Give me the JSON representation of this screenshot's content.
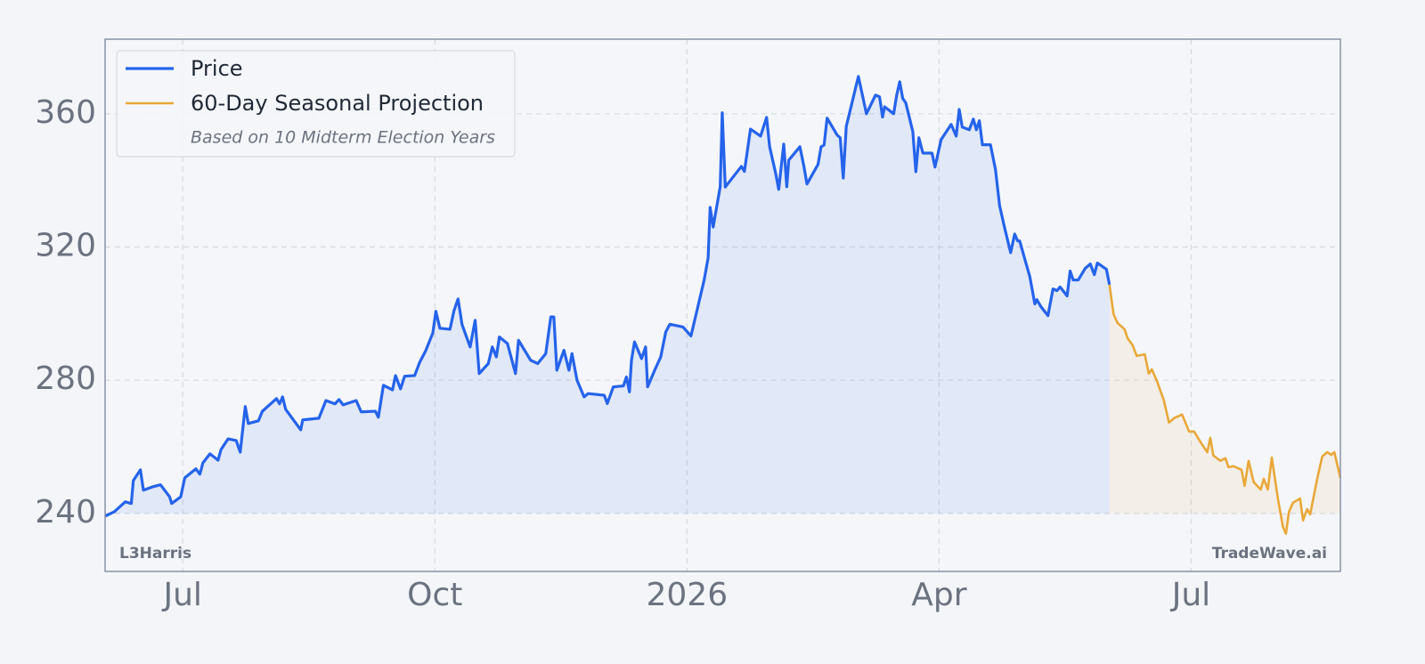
{
  "chart_data": {
    "type": "line",
    "title": "L3Harris",
    "subtitle": "Based on 10 Midterm Election Years",
    "watermark": "TradeWave.ai",
    "xlim": [
      2025.423,
      2026.648
    ],
    "xticks": [
      {
        "value": 2025.5,
        "label": "Jul"
      },
      {
        "value": 2025.75,
        "label": "Oct"
      },
      2026,
      {
        "value": 2026.25,
        "label": "Apr"
      },
      {
        "value": 2026.5,
        "label": "Jul"
      }
    ],
    "ylim": [
      222.6,
      382.4
    ],
    "yticks": [
      240,
      280,
      320,
      360
    ],
    "grid": true,
    "legend": "upper left",
    "series": [
      {
        "name": "Price",
        "color": "#2563eb",
        "x": [
          2025.423,
          2025.432,
          2025.443,
          2025.449,
          2025.451,
          2025.458,
          2025.461,
          2025.47,
          2025.478,
          2025.487,
          2025.489,
          2025.498,
          2025.502,
          2025.513,
          2025.517,
          2025.52,
          2025.527,
          2025.535,
          2025.538,
          2025.545,
          2025.553,
          2025.557,
          2025.562,
          2025.565,
          2025.575,
          2025.579,
          2025.593,
          2025.596,
          2025.599,
          2025.602,
          2025.617,
          2025.619,
          2025.635,
          2025.642,
          2025.651,
          2025.655,
          2025.659,
          2025.672,
          2025.677,
          2025.691,
          2025.694,
          2025.699,
          2025.708,
          2025.711,
          2025.716,
          2025.72,
          2025.73,
          2025.735,
          2025.741,
          2025.748,
          2025.751,
          2025.755,
          2025.765,
          2025.769,
          2025.773,
          2025.777,
          2025.785,
          2025.79,
          2025.794,
          2025.803,
          2025.807,
          2025.811,
          2025.814,
          2025.822,
          2025.83,
          2025.833,
          2025.845,
          2025.852,
          2025.86,
          2025.865,
          2025.868,
          2025.871,
          2025.878,
          2025.883,
          2025.886,
          2025.891,
          2025.898,
          2025.902,
          2025.918,
          2025.921,
          2025.927,
          2025.937,
          2025.94,
          2025.943,
          2025.945,
          2025.948,
          2025.955,
          2025.959,
          2025.961,
          2025.968,
          2025.974,
          2025.979,
          2025.983,
          2025.996,
          2026.004,
          2026.017,
          2026.021,
          2026.023,
          2026.026,
          2026.033,
          2026.035,
          2026.038,
          2026.047,
          2026.054,
          2026.057,
          2026.063,
          2026.073,
          2026.079,
          2026.082,
          2026.088,
          2026.091,
          2026.096,
          2026.099,
          2026.101,
          2026.112,
          2026.116,
          2026.119,
          2026.13,
          2026.133,
          2026.136,
          2026.139,
          2026.149,
          2026.152,
          2026.155,
          2026.158,
          2026.17,
          2026.178,
          2026.187,
          2026.191,
          2026.194,
          2026.196,
          2026.205,
          2026.208,
          2026.211,
          2026.214,
          2026.217,
          2026.224,
          2026.227,
          2026.23,
          2026.234,
          2026.243,
          2026.246,
          2026.252,
          2026.262,
          2026.267,
          2026.27,
          2026.273,
          2026.28,
          2026.284,
          2026.287,
          2026.29,
          2026.293,
          2026.301,
          2026.306,
          2026.31,
          2026.315,
          2026.321,
          2026.325,
          2026.328,
          2026.33,
          2026.335,
          2026.34,
          2026.345,
          2026.347,
          2026.351,
          2026.358,
          2026.363,
          2026.367,
          2026.37,
          2026.377,
          2026.38,
          2026.383,
          2026.388,
          2026.395,
          2026.4,
          2026.404,
          2026.407,
          2026.416,
          2026.419
        ],
        "values": [
          239.2,
          240.5,
          243.5,
          243,
          249.9,
          253.1,
          247,
          248,
          248.6,
          245,
          243,
          245,
          250.7,
          253.4,
          251.8,
          255.2,
          257.9,
          256,
          259.2,
          262.4,
          261.9,
          258.4,
          272.1,
          267,
          267.8,
          270.7,
          274.5,
          272.9,
          275,
          271.3,
          265.1,
          268.1,
          268.6,
          273.9,
          272.9,
          274.2,
          272.6,
          273.9,
          270.5,
          270.7,
          268.9,
          278.5,
          277.1,
          281.4,
          277.4,
          281.2,
          281.4,
          285.4,
          288.9,
          294.2,
          300.7,
          295.6,
          295.3,
          300.9,
          304.4,
          296.7,
          290,
          298,
          282,
          285,
          290,
          287,
          293,
          291,
          282,
          292,
          286,
          285,
          288,
          299,
          299,
          283,
          289,
          283,
          288,
          280,
          275,
          276,
          275.5,
          273,
          278,
          278.3,
          281,
          276.5,
          286,
          291.5,
          286.5,
          290,
          278,
          283,
          287,
          294.5,
          296.8,
          296,
          293.3,
          310,
          316.7,
          331.9,
          326,
          338.1,
          360.3,
          338,
          341.5,
          344.2,
          342.7,
          355.4,
          353.3,
          358.9,
          350.1,
          342.1,
          337.3,
          350.9,
          338.1,
          346.1,
          350.1,
          344.2,
          338.9,
          344.8,
          350.1,
          350.6,
          358.7,
          353.6,
          352.8,
          340.7,
          356.2,
          371.2,
          360,
          365.6,
          365.1,
          359,
          362.1,
          360,
          365.6,
          369.6,
          364.6,
          363.3,
          354.6,
          342.6,
          352.8,
          348.2,
          348.2,
          344,
          352.2,
          356.8,
          353.3,
          361.3,
          356,
          355.2,
          358.4,
          355.2,
          357.9,
          350.7,
          350.7,
          343.2,
          332.5,
          325.8,
          318.3,
          323.9,
          321.8,
          321.8,
          316.4,
          311.1,
          302.9,
          304.2,
          302.1,
          299.4,
          307.4,
          306.9,
          308,
          305.3,
          312.8,
          310.1,
          310.1,
          313.6,
          314.9,
          311.7,
          315.2,
          313.3,
          308.7
        ]
      },
      {
        "name": "60-Day Seasonal Projection",
        "color": "#e8a838",
        "x": [
          2026.419,
          2026.423,
          2026.427,
          2026.434,
          2026.437,
          2026.442,
          2026.446,
          2026.454,
          2026.458,
          2026.461,
          2026.466,
          2026.473,
          2026.478,
          2026.483,
          2026.491,
          2026.498,
          2026.503,
          2026.51,
          2026.516,
          2026.519,
          2026.522,
          2026.529,
          2026.534,
          2026.537,
          2026.542,
          2026.55,
          2026.553,
          2026.557,
          2026.562,
          2026.569,
          2026.572,
          2026.576,
          2026.58,
          2026.586,
          2026.591,
          2026.594,
          2026.597,
          2026.601,
          2026.608,
          2026.611,
          2026.615,
          2026.618,
          2026.625,
          2026.63,
          2026.635,
          2026.639,
          2026.642,
          2026.648
        ],
        "values": [
          308.7,
          299.9,
          297.2,
          295.3,
          292.6,
          290.5,
          287.3,
          287.8,
          282,
          283.3,
          279.8,
          273.9,
          267.3,
          268.6,
          269.7,
          264.6,
          264.6,
          261.1,
          258.4,
          262.7,
          257.4,
          255.8,
          256.6,
          253.9,
          254.2,
          253.1,
          248.3,
          255.8,
          249.4,
          247.2,
          250.4,
          247.2,
          256.8,
          244.5,
          236,
          233.9,
          240.5,
          243.2,
          244.5,
          237.9,
          241.3,
          239.7,
          250.4,
          257.1,
          258.4,
          257.6,
          258.4,
          250.7
        ]
      }
    ]
  }
}
